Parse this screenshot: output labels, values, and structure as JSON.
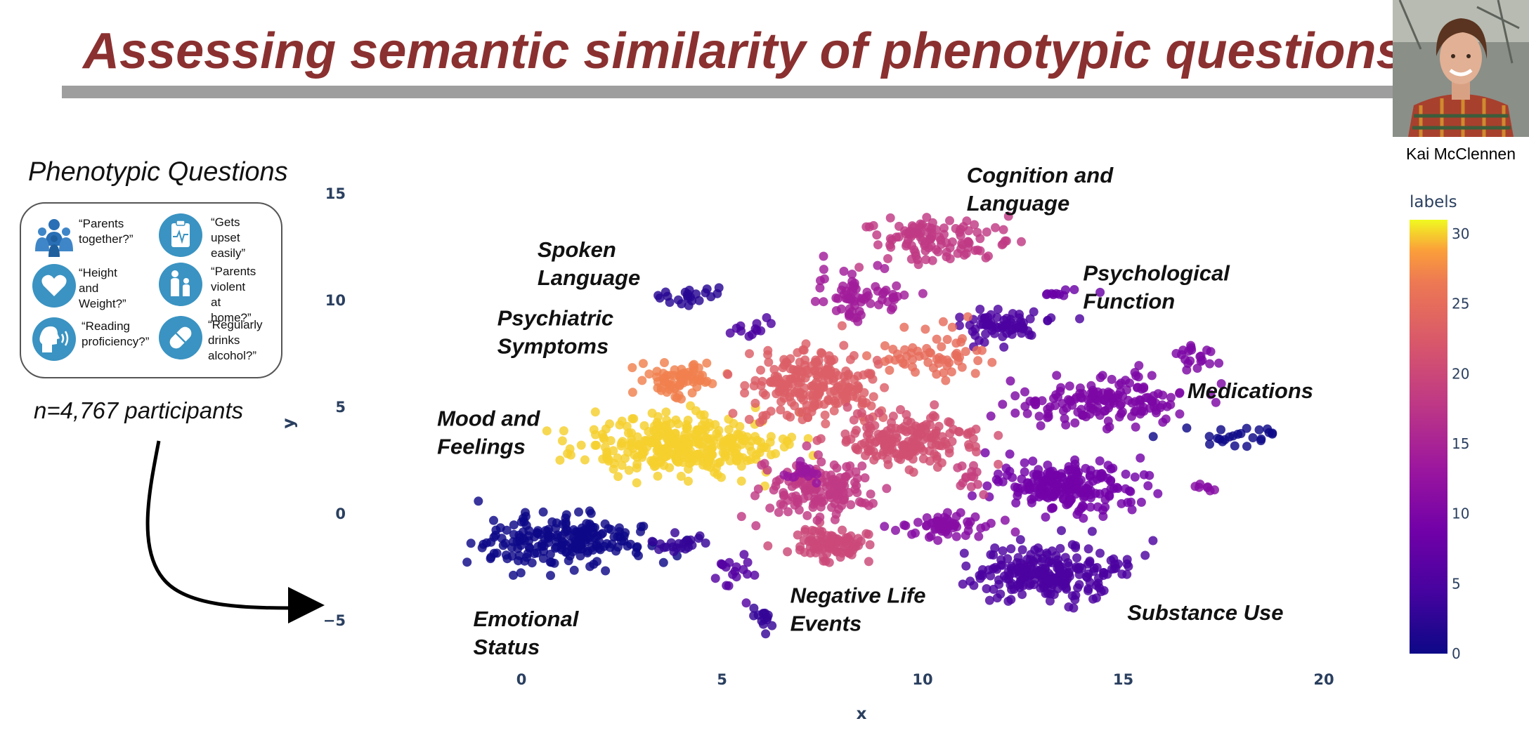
{
  "slide": {
    "title": "Assessing semantic similarity of phenotypic questions",
    "presenter_name": "Kai McClennen"
  },
  "phenotypic_panel": {
    "heading": "Phenotypic Questions",
    "items": [
      {
        "icon": "family-group-icon",
        "text": "“Parents\ntogether?”"
      },
      {
        "icon": "clipboard-ecg-icon",
        "text": "“Gets upset\neasily”"
      },
      {
        "icon": "heart-icon",
        "text": "“Height and\nWeight?”"
      },
      {
        "icon": "parent-child-icon",
        "text": "“Parents\nviolent at\nhome?”"
      },
      {
        "icon": "speaking-head-icon",
        "text": "“Reading\nproficiency?”"
      },
      {
        "icon": "pill-icon",
        "text": "“Regularly\ndrinks\nalcohol?”"
      }
    ],
    "participants": "n=4,767 participants"
  },
  "chart_data": {
    "type": "scatter",
    "xlabel": "x",
    "ylabel": "y",
    "xlim": [
      -3,
      21
    ],
    "ylim": [
      -7,
      16
    ],
    "xticks": [
      0,
      5,
      10,
      15,
      20
    ],
    "yticks": [
      15,
      10,
      5,
      0,
      -5
    ],
    "grid": false,
    "colorbar": {
      "title": "labels",
      "range": [
        0,
        31
      ],
      "ticks": [
        30,
        25,
        20,
        15,
        10,
        5,
        0
      ],
      "colorscale": "plasma"
    },
    "clusters": [
      {
        "name": "Emotional Status",
        "label": 0,
        "cx": 1.0,
        "cy": -1.3,
        "sx": 2.0,
        "sy": 1.0,
        "n": 210
      },
      {
        "name": "Mood and Feelings",
        "label": 30,
        "cx": 4.0,
        "cy": 3.2,
        "sx": 2.0,
        "sy": 1.1,
        "n": 330
      },
      {
        "name": "Psychiatric Symptoms",
        "label": 27,
        "cx": 4.0,
        "cy": 6.2,
        "sx": 0.8,
        "sy": 0.8,
        "n": 70
      },
      {
        "name": "Spoken Language",
        "label": 2,
        "cx": 4.2,
        "cy": 10.2,
        "sx": 0.6,
        "sy": 0.4,
        "n": 22
      },
      {
        "name": "Cognition and Language",
        "label": 18,
        "cx": 10.3,
        "cy": 12.8,
        "sx": 1.4,
        "sy": 0.8,
        "n": 110
      },
      {
        "name": "Psychological Function",
        "label": 5,
        "cx": 12.0,
        "cy": 8.8,
        "sx": 1.0,
        "sy": 0.6,
        "n": 70
      },
      {
        "name": "Medications",
        "label": 10,
        "cx": 14.5,
        "cy": 5.2,
        "sx": 1.8,
        "sy": 1.0,
        "n": 160
      },
      {
        "name": "Medications",
        "label": 0,
        "cx": 18.0,
        "cy": 3.6,
        "sx": 1.2,
        "sy": 0.4,
        "n": 24
      },
      {
        "name": "Substance Use",
        "label": 5,
        "cx": 13.2,
        "cy": -2.8,
        "sx": 1.6,
        "sy": 1.1,
        "n": 230
      },
      {
        "name": "Negative Life Events",
        "label": 20,
        "cx": 7.7,
        "cy": -1.5,
        "sx": 0.8,
        "sy": 0.6,
        "n": 90
      },
      {
        "name": "",
        "label": 23,
        "cx": 7.3,
        "cy": 6.0,
        "sx": 1.4,
        "sy": 1.4,
        "n": 220
      },
      {
        "name": "",
        "label": 21,
        "cx": 9.6,
        "cy": 3.4,
        "sx": 1.3,
        "sy": 1.0,
        "n": 180
      },
      {
        "name": "",
        "label": 18,
        "cx": 7.4,
        "cy": 1.2,
        "sx": 1.1,
        "sy": 1.0,
        "n": 150
      },
      {
        "name": "",
        "label": 9,
        "cx": 13.6,
        "cy": 1.2,
        "sx": 1.5,
        "sy": 0.9,
        "n": 210
      },
      {
        "name": "",
        "label": 11,
        "cx": 10.6,
        "cy": -0.6,
        "sx": 1.0,
        "sy": 0.5,
        "n": 60
      },
      {
        "name": "",
        "label": 14,
        "cx": 8.6,
        "cy": 10.2,
        "sx": 1.0,
        "sy": 1.0,
        "n": 70
      },
      {
        "name": "",
        "label": 25,
        "cx": 10.3,
        "cy": 7.5,
        "sx": 1.1,
        "sy": 1.1,
        "n": 60
      },
      {
        "name": "",
        "label": 3,
        "cx": 4.0,
        "cy": -1.4,
        "sx": 0.5,
        "sy": 0.4,
        "n": 22
      },
      {
        "name": "",
        "label": 6,
        "cx": 5.3,
        "cy": -2.5,
        "sx": 0.4,
        "sy": 0.8,
        "n": 18
      },
      {
        "name": "",
        "label": 3,
        "cx": 6.0,
        "cy": -4.9,
        "sx": 0.2,
        "sy": 0.7,
        "n": 14
      },
      {
        "name": "",
        "label": 5,
        "cx": 5.6,
        "cy": 8.6,
        "sx": 0.6,
        "sy": 0.5,
        "n": 12
      },
      {
        "name": "",
        "label": 8,
        "cx": 13.6,
        "cy": 10.3,
        "sx": 0.5,
        "sy": 0.3,
        "n": 10
      },
      {
        "name": "",
        "label": 10,
        "cx": 16.8,
        "cy": 7.3,
        "sx": 0.5,
        "sy": 0.5,
        "n": 20
      },
      {
        "name": "",
        "label": 11,
        "cx": 17.0,
        "cy": 1.3,
        "sx": 0.3,
        "sy": 0.3,
        "n": 7
      },
      {
        "name": "",
        "label": 13,
        "cx": 7.0,
        "cy": 1.8,
        "sx": 0.4,
        "sy": 0.4,
        "n": 16
      },
      {
        "name": "",
        "label": 19,
        "cx": 11.2,
        "cy": 1.6,
        "sx": 0.3,
        "sy": 0.6,
        "n": 14
      }
    ],
    "annotations": [
      {
        "text": "Cognition and\nLanguage",
        "x": 11.1,
        "y": 15.5
      },
      {
        "text": "Spoken\nLanguage",
        "x": 0.4,
        "y": 12.0
      },
      {
        "text": "Psychological\nFunction",
        "x": 14.0,
        "y": 10.9
      },
      {
        "text": "Psychiatric\nSymptoms",
        "x": -0.6,
        "y": 8.8
      },
      {
        "text": "Medications",
        "x": 16.6,
        "y": 5.4
      },
      {
        "text": "Mood and\nFeelings",
        "x": -2.1,
        "y": 4.1
      },
      {
        "text": "Negative Life\nEvents",
        "x": 6.7,
        "y": -4.2
      },
      {
        "text": "Substance Use",
        "x": 15.1,
        "y": -5.0
      },
      {
        "text": "Emotional\nStatus",
        "x": -1.2,
        "y": -5.3
      }
    ]
  }
}
